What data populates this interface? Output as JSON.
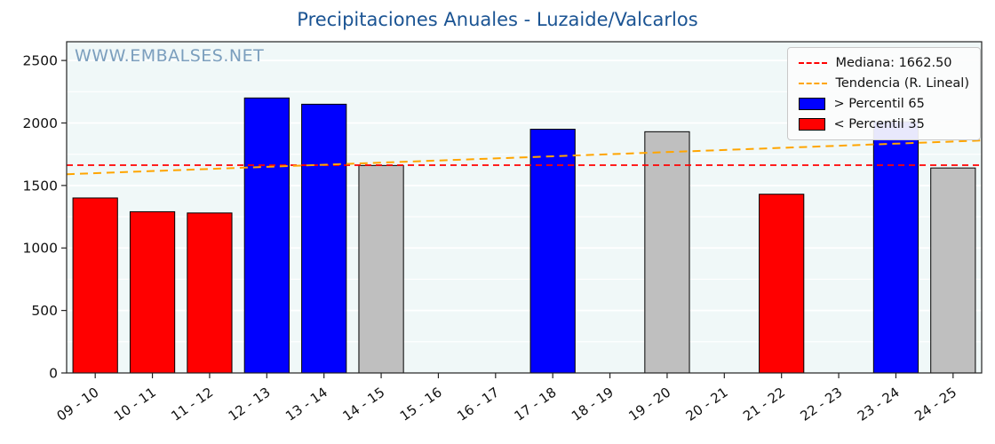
{
  "title": "Precipitaciones Anuales - Luzaide/Valcarlos",
  "watermark": "WWW.EMBALSES.NET",
  "chart_data": {
    "type": "bar",
    "categories": [
      "09 - 10",
      "10 - 11",
      "11 - 12",
      "12 - 13",
      "13 - 14",
      "14 - 15",
      "15 - 16",
      "16 - 17",
      "17 - 18",
      "18 - 19",
      "19 - 20",
      "20 - 21",
      "21 - 22",
      "22 - 23",
      "23 - 24",
      "24 - 25"
    ],
    "values": [
      1400,
      1290,
      1280,
      2200,
      2150,
      1660,
      0,
      0,
      1950,
      0,
      1930,
      0,
      1430,
      0,
      2010,
      1640
    ],
    "bar_colors": [
      "red",
      "red",
      "red",
      "blue",
      "blue",
      "gray",
      "none",
      "none",
      "blue",
      "none",
      "gray",
      "none",
      "red",
      "none",
      "blue",
      "gray"
    ],
    "median": 1662.5,
    "trend": {
      "start": 1590,
      "end": 1860
    },
    "ylim": [
      0,
      2650
    ],
    "yticks": [
      0,
      500,
      1000,
      1500,
      2000,
      2500
    ],
    "grid": "on",
    "legend_position": "top-right",
    "legend": [
      {
        "label": "Mediana: 1662.50",
        "type": "line",
        "color": "#ff0000"
      },
      {
        "label": "Tendencia (R. Lineal)",
        "type": "line",
        "color": "#ffa500"
      },
      {
        "label": "> Percentil 65",
        "type": "patch",
        "color": "#0000ff"
      },
      {
        "label": "< Percentil 35",
        "type": "patch",
        "color": "#ff0000"
      }
    ],
    "colors": {
      "blue": "#0000ff",
      "red": "#ff0000",
      "gray": "#bfbfbf",
      "median": "#ff0000",
      "trend": "#ffa500",
      "plot_bg": "#f0f8f8",
      "grid": "#ffffff"
    }
  }
}
